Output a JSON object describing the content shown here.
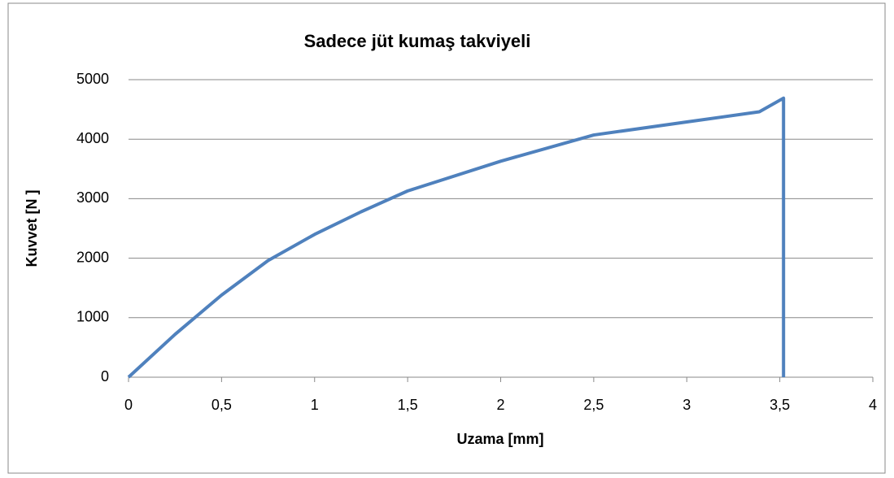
{
  "chart_data": {
    "type": "line",
    "title": "Sadece jüt kumaş takviyeli",
    "xlabel": "Uzama [mm]",
    "ylabel": "Kuvvet [N ]",
    "x": [
      0,
      0.25,
      0.5,
      0.75,
      1,
      1.25,
      1.5,
      2,
      2.5,
      3,
      3.39,
      3.52,
      3.52
    ],
    "series": [
      {
        "name": "Kuvvet",
        "color": "#4f81bd",
        "values": [
          0,
          720,
          1380,
          1960,
          2400,
          2780,
          3130,
          3630,
          4070,
          4290,
          4460,
          4690,
          0
        ]
      }
    ],
    "xlim": [
      0,
      4
    ],
    "xticks": [
      0,
      {
        "value": 0.5,
        "label": "0,5"
      },
      1,
      {
        "value": 1.5,
        "label": "1,5"
      },
      2,
      {
        "value": 2.5,
        "label": "2,5"
      },
      3,
      {
        "value": 3.5,
        "label": "3,5"
      },
      4
    ],
    "ylim": [
      0,
      5000
    ],
    "yticks": [
      0,
      1000,
      2000,
      3000,
      4000,
      5000
    ],
    "grid": true
  }
}
